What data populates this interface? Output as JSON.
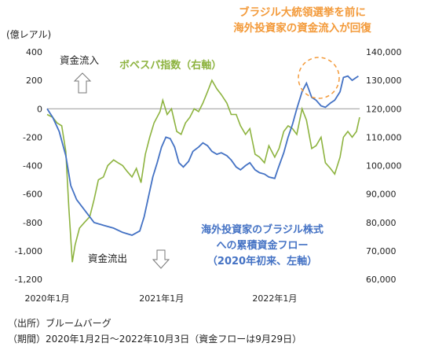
{
  "chart_data": {
    "type": "line",
    "left_axis_unit": "(億レアル)",
    "left_axis": {
      "min": -1200,
      "max": 400,
      "ticks": [
        "400",
        "200",
        "0",
        "-200",
        "-400",
        "-600",
        "-800",
        "-1,000",
        "-1,200"
      ]
    },
    "right_axis": {
      "min": 60000,
      "max": 140000,
      "ticks": [
        "140,000",
        "130,000",
        "120,000",
        "110,000",
        "100,000",
        "90,000",
        "80,000",
        "70,000",
        "60,000"
      ]
    },
    "x_ticks": [
      "2020年1月",
      "2021年1月",
      "2022年1月"
    ],
    "x_range": [
      "2020-01-02",
      "2022-10-03"
    ],
    "x_tick_dates": [
      "2020-01-02",
      "2021-01-04",
      "2022-01-03"
    ],
    "series": [
      {
        "name": "海外投資家のブラジル株式への累積資金フロー",
        "axis": "left",
        "color": "#4472C4",
        "points": [
          [
            "2020-01-02",
            0
          ],
          [
            "2020-01-20",
            -60
          ],
          [
            "2020-02-10",
            -160
          ],
          [
            "2020-03-02",
            -330
          ],
          [
            "2020-03-18",
            -540
          ],
          [
            "2020-04-06",
            -640
          ],
          [
            "2020-05-04",
            -720
          ],
          [
            "2020-06-01",
            -800
          ],
          [
            "2020-07-01",
            -820
          ],
          [
            "2020-08-03",
            -840
          ],
          [
            "2020-09-01",
            -870
          ],
          [
            "2020-10-01",
            -890
          ],
          [
            "2020-10-26",
            -860
          ],
          [
            "2020-11-09",
            -760
          ],
          [
            "2020-11-23",
            -620
          ],
          [
            "2020-12-07",
            -480
          ],
          [
            "2020-12-21",
            -380
          ],
          [
            "2021-01-04",
            -270
          ],
          [
            "2021-01-18",
            -200
          ],
          [
            "2021-02-01",
            -210
          ],
          [
            "2021-02-15",
            -270
          ],
          [
            "2021-03-01",
            -380
          ],
          [
            "2021-03-15",
            -410
          ],
          [
            "2021-04-01",
            -370
          ],
          [
            "2021-04-15",
            -300
          ],
          [
            "2021-05-03",
            -270
          ],
          [
            "2021-05-17",
            -240
          ],
          [
            "2021-06-01",
            -260
          ],
          [
            "2021-06-15",
            -300
          ],
          [
            "2021-07-01",
            -320
          ],
          [
            "2021-07-15",
            -310
          ],
          [
            "2021-08-02",
            -330
          ],
          [
            "2021-08-16",
            -360
          ],
          [
            "2021-09-01",
            -410
          ],
          [
            "2021-09-15",
            -430
          ],
          [
            "2021-10-01",
            -400
          ],
          [
            "2021-10-15",
            -380
          ],
          [
            "2021-11-01",
            -430
          ],
          [
            "2021-11-15",
            -450
          ],
          [
            "2021-12-01",
            -460
          ],
          [
            "2021-12-15",
            -480
          ],
          [
            "2022-01-03",
            -490
          ],
          [
            "2022-01-14",
            -420
          ],
          [
            "2022-02-01",
            -310
          ],
          [
            "2022-02-15",
            -200
          ],
          [
            "2022-03-01",
            -110
          ],
          [
            "2022-03-15",
            0
          ],
          [
            "2022-04-01",
            120
          ],
          [
            "2022-04-15",
            180
          ],
          [
            "2022-05-02",
            80
          ],
          [
            "2022-05-16",
            60
          ],
          [
            "2022-06-01",
            20
          ],
          [
            "2022-06-15",
            10
          ],
          [
            "2022-07-01",
            40
          ],
          [
            "2022-07-15",
            60
          ],
          [
            "2022-08-01",
            120
          ],
          [
            "2022-08-12",
            220
          ],
          [
            "2022-08-26",
            230
          ],
          [
            "2022-09-09",
            200
          ],
          [
            "2022-09-29",
            230
          ]
        ]
      },
      {
        "name": "ボベスパ指数（右軸）",
        "axis": "right",
        "color": "#8DB33F",
        "points": [
          [
            "2020-01-02",
            118000
          ],
          [
            "2020-01-20",
            117000
          ],
          [
            "2020-02-03",
            115000
          ],
          [
            "2020-02-18",
            114000
          ],
          [
            "2020-03-02",
            105000
          ],
          [
            "2020-03-12",
            85000
          ],
          [
            "2020-03-23",
            66000
          ],
          [
            "2020-04-01",
            72000
          ],
          [
            "2020-04-15",
            78000
          ],
          [
            "2020-05-01",
            80000
          ],
          [
            "2020-05-18",
            82000
          ],
          [
            "2020-06-01",
            88000
          ],
          [
            "2020-06-15",
            95000
          ],
          [
            "2020-07-01",
            96000
          ],
          [
            "2020-07-15",
            100000
          ],
          [
            "2020-08-03",
            102000
          ],
          [
            "2020-08-17",
            101000
          ],
          [
            "2020-09-01",
            100000
          ],
          [
            "2020-09-15",
            98000
          ],
          [
            "2020-10-01",
            96000
          ],
          [
            "2020-10-15",
            99000
          ],
          [
            "2020-10-30",
            94000
          ],
          [
            "2020-11-13",
            104000
          ],
          [
            "2020-11-27",
            110000
          ],
          [
            "2020-12-11",
            115000
          ],
          [
            "2020-12-30",
            119000
          ],
          [
            "2021-01-08",
            123000
          ],
          [
            "2021-01-22",
            118000
          ],
          [
            "2021-02-05",
            120000
          ],
          [
            "2021-02-22",
            112000
          ],
          [
            "2021-03-08",
            111000
          ],
          [
            "2021-03-22",
            115000
          ],
          [
            "2021-04-05",
            117000
          ],
          [
            "2021-04-19",
            120000
          ],
          [
            "2021-05-03",
            119000
          ],
          [
            "2021-05-17",
            122000
          ],
          [
            "2021-06-01",
            126000
          ],
          [
            "2021-06-15",
            130000
          ],
          [
            "2021-07-01",
            127000
          ],
          [
            "2021-07-15",
            125000
          ],
          [
            "2021-08-02",
            122000
          ],
          [
            "2021-08-16",
            118000
          ],
          [
            "2021-09-01",
            118000
          ],
          [
            "2021-09-15",
            114000
          ],
          [
            "2021-10-01",
            111000
          ],
          [
            "2021-10-15",
            113000
          ],
          [
            "2021-11-01",
            104000
          ],
          [
            "2021-11-15",
            103000
          ],
          [
            "2021-12-01",
            101000
          ],
          [
            "2021-12-15",
            107000
          ],
          [
            "2022-01-03",
            103000
          ],
          [
            "2022-01-17",
            106000
          ],
          [
            "2022-02-01",
            112000
          ],
          [
            "2022-02-15",
            114000
          ],
          [
            "2022-03-01",
            113000
          ],
          [
            "2022-03-15",
            111000
          ],
          [
            "2022-04-01",
            120000
          ],
          [
            "2022-04-15",
            116000
          ],
          [
            "2022-05-02",
            106000
          ],
          [
            "2022-05-16",
            107000
          ],
          [
            "2022-06-01",
            110000
          ],
          [
            "2022-06-15",
            101000
          ],
          [
            "2022-07-01",
            99000
          ],
          [
            "2022-07-15",
            97000
          ],
          [
            "2022-08-01",
            103000
          ],
          [
            "2022-08-12",
            110000
          ],
          [
            "2022-08-26",
            112000
          ],
          [
            "2022-09-09",
            110000
          ],
          [
            "2022-09-23",
            112000
          ],
          [
            "2022-10-03",
            117000
          ]
        ]
      }
    ],
    "legend_bovespa": "ボベスパ指数（右軸）",
    "label_flow": [
      "海外投資家のブラジル株式",
      "への累積資金フロー",
      "（2020年初来、左軸）"
    ],
    "label_inflow": "資金流入",
    "label_outflow": "資金流出",
    "headline": [
      "ブラジル大統領選挙を前に",
      "海外投資家の資金流入が回復"
    ]
  },
  "colors": {
    "flow": "#4472C4",
    "bovespa": "#8DB33F",
    "headline": "#F39A3A",
    "grid": "#d9d9d9"
  },
  "notes": {
    "source": "（出所）ブルームバーグ",
    "period": "（期間）2020年1月2日～2022年10月3日（資金フローは9月29日）"
  }
}
